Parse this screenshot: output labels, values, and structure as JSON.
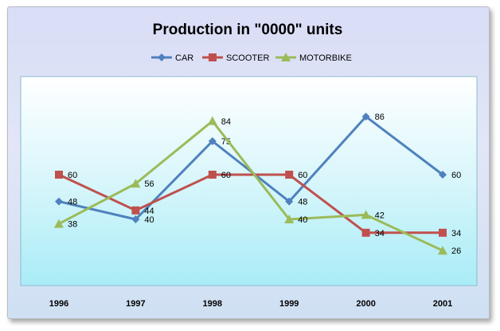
{
  "chart_data": {
    "type": "line",
    "title": "Production in \"0000\" units",
    "categories": [
      "1996",
      "1997",
      "1998",
      "1999",
      "2000",
      "2001"
    ],
    "legend_position": "top",
    "grid": false,
    "series": [
      {
        "name": "CAR",
        "color": "#4f81bd",
        "marker": "diamond",
        "values": [
          48,
          40,
          75,
          48,
          86,
          60
        ],
        "labels": [
          "48",
          "40",
          "75",
          "48",
          "86",
          "60"
        ]
      },
      {
        "name": "SCOOTER",
        "color": "#c0504d",
        "marker": "square",
        "values": [
          60,
          44,
          60,
          60,
          34,
          34
        ],
        "labels": [
          "60",
          "44",
          "60",
          "60",
          "34",
          "34"
        ]
      },
      {
        "name": "MOTORBIKE",
        "color": "#9bbb59",
        "marker": "triangle",
        "values": [
          38,
          56,
          84,
          40,
          42,
          26
        ],
        "labels": [
          "38",
          "56",
          "84",
          "40",
          "42",
          "26"
        ]
      }
    ]
  }
}
